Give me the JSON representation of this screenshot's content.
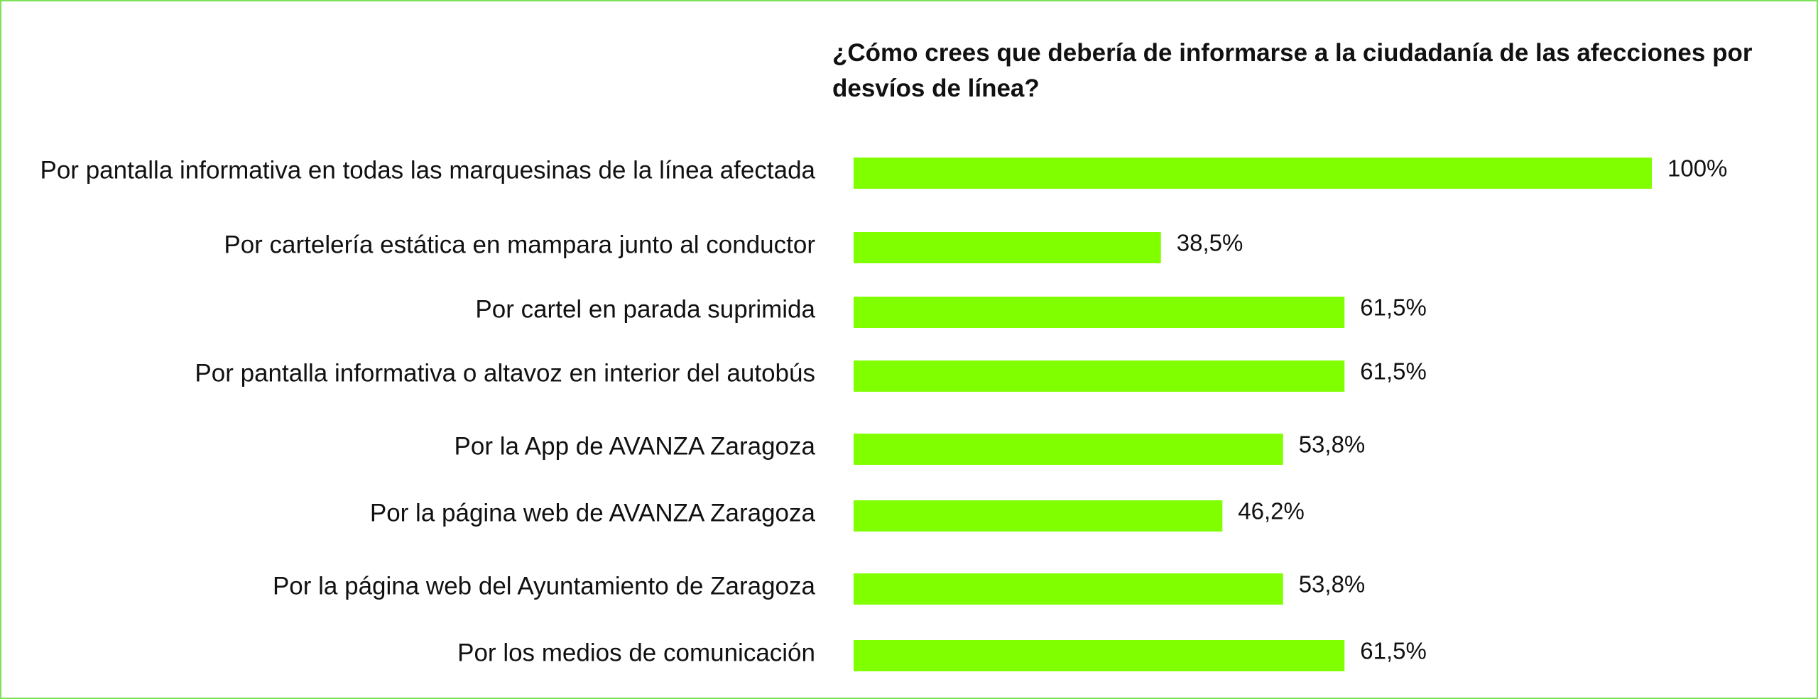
{
  "chart_data": {
    "type": "bar",
    "orientation": "horizontal",
    "title": "¿Cómo crees que debería de informarse a la ciudadanía de las afecciones por desvíos de línea?",
    "categories": [
      "Por pantalla informativa en todas las marquesinas de la línea afectada",
      "Por cartelería estática en mampara junto al conductor",
      "Por cartel en parada suprimida",
      "Por pantalla informativa o altavoz en interior del autobús",
      "Por la App de AVANZA Zaragoza",
      "Por la página web de AVANZA Zaragoza",
      "Por la página web del Ayuntamiento de Zaragoza",
      "Por los medios de comunicación"
    ],
    "values": [
      100,
      38.5,
      61.5,
      61.5,
      53.8,
      46.2,
      53.8,
      61.5
    ],
    "value_labels": [
      "100%",
      "38,5%",
      "61,5%",
      "61,5%",
      "53,8%",
      "46,2%",
      "53,8%",
      "61,5%"
    ],
    "xlim": [
      0,
      100
    ],
    "grid": false,
    "legend": "none",
    "bar_color": "#80ff00",
    "frame_color": "#7fe05a"
  }
}
